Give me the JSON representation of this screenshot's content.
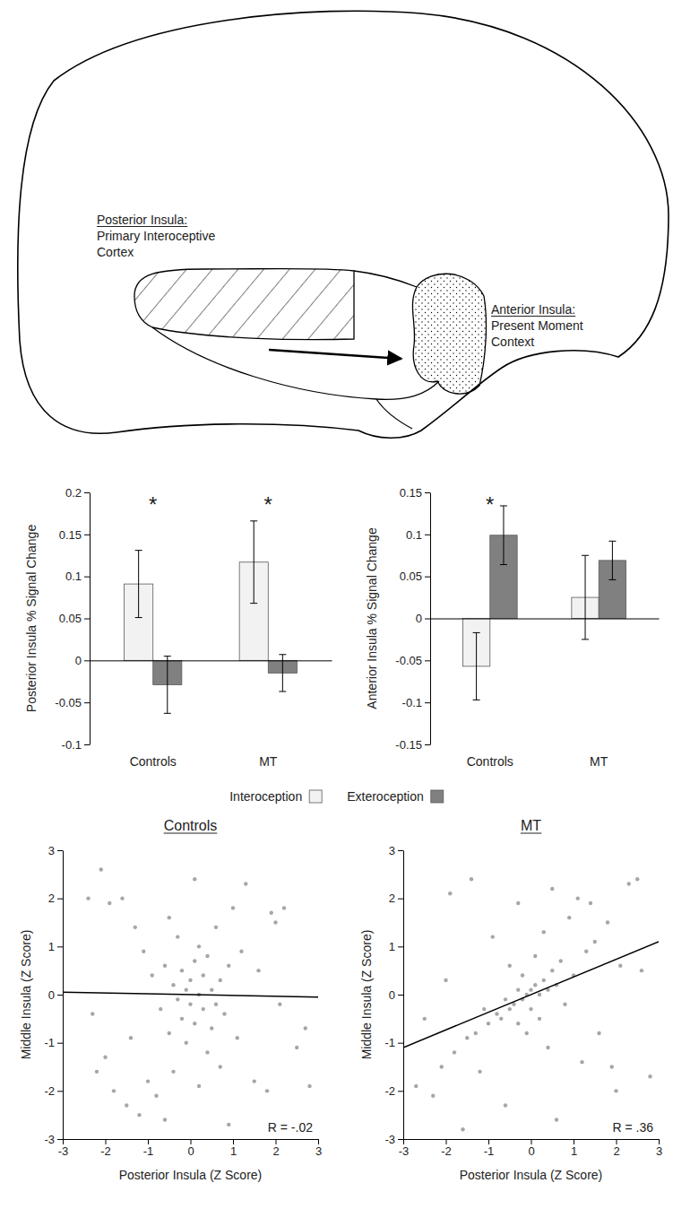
{
  "diagram": {
    "labels": [
      {
        "title": "Posterior Insula:",
        "text": "Primary Interoceptive Cortex"
      },
      {
        "title": "Anterior Insula:",
        "text": "Present Moment Context"
      }
    ]
  },
  "chart_data": [
    {
      "type": "bar",
      "y_label": "Posterior Insula % Signal Change",
      "categories": [
        "Controls",
        "MT"
      ],
      "series": [
        {
          "name": "Interoception",
          "color": "#f2f2f2",
          "values": [
            0.091,
            0.117
          ],
          "errors": [
            0.04,
            0.049
          ]
        },
        {
          "name": "Exteroception",
          "color": "#808080",
          "values": [
            -0.029,
            -0.015
          ],
          "errors": [
            0.034,
            0.022
          ]
        }
      ],
      "ylim": [
        -0.1,
        0.2
      ],
      "yticks": [
        -0.1,
        -0.05,
        0,
        0.05,
        0.1,
        0.15,
        0.2
      ],
      "annotations": [
        {
          "text": "*",
          "x": "Controls"
        },
        {
          "text": "*",
          "x": "MT"
        }
      ],
      "legend": "bottom"
    },
    {
      "type": "bar",
      "y_label": "Anterior Insula % Signal Change",
      "categories": [
        "Controls",
        "MT"
      ],
      "series": [
        {
          "name": "Interoception",
          "color": "#f2f2f2",
          "values": [
            -0.057,
            0.025
          ],
          "errors": [
            0.04,
            0.05
          ]
        },
        {
          "name": "Exteroception",
          "color": "#808080",
          "values": [
            0.099,
            0.069
          ],
          "errors": [
            0.035,
            0.023
          ]
        }
      ],
      "ylim": [
        -0.15,
        0.15
      ],
      "yticks": [
        -0.15,
        -0.1,
        -0.05,
        0,
        0.05,
        0.1,
        0.15
      ],
      "annotations": [
        {
          "text": "*",
          "x": "Controls"
        }
      ]
    },
    {
      "type": "scatter",
      "title": "Controls",
      "x_label": "Posterior Insula (Z Score)",
      "y_label": "Middle Insula (Z Score)",
      "xlim": [
        -3,
        3
      ],
      "xticks": [
        -3,
        -2,
        -1,
        0,
        1,
        2,
        3
      ],
      "ylim": [
        -3,
        3
      ],
      "yticks": [
        -3,
        -2,
        -1,
        0,
        1,
        2,
        3
      ],
      "series": [
        {
          "type": "scatter",
          "marker": "circle",
          "color": "#a6a6a6",
          "x": [
            -2.4,
            -2.1,
            -1.9,
            -1.6,
            -1.3,
            -2.3,
            -2.0,
            -1.8,
            -1.5,
            -1.2,
            -2.2,
            -1.0,
            -0.8,
            -0.6,
            -1.1,
            -0.9,
            -0.7,
            -0.6,
            -0.5,
            -0.4,
            -0.3,
            -0.3,
            -0.2,
            -0.2,
            -0.1,
            -0.1,
            0.0,
            0.0,
            0.1,
            0.1,
            0.2,
            0.2,
            0.3,
            0.3,
            0.4,
            0.4,
            0.5,
            0.5,
            0.6,
            0.6,
            0.7,
            0.7,
            0.8,
            0.9,
            1.0,
            1.1,
            1.3,
            1.5,
            1.6,
            1.8,
            1.9,
            2.0,
            2.1,
            2.2,
            2.5,
            2.7,
            2.8,
            -0.4,
            0.2,
            -0.5,
            0.1,
            -1.4,
            1.2,
            0.9
          ],
          "values": [
            2.0,
            2.6,
            1.9,
            2.0,
            1.4,
            -0.4,
            -1.3,
            -2.0,
            -2.3,
            -2.5,
            -1.6,
            -1.8,
            -2.1,
            -2.6,
            0.9,
            0.4,
            -0.3,
            0.6,
            -0.8,
            0.2,
            -0.1,
            1.2,
            0.5,
            -0.5,
            0.1,
            -1.0,
            0.3,
            -0.2,
            0.7,
            -0.6,
            0.0,
            1.0,
            -0.3,
            0.4,
            -1.2,
            0.8,
            0.1,
            -0.7,
            1.4,
            -0.2,
            0.3,
            -1.5,
            -0.4,
            0.6,
            1.8,
            -0.9,
            2.3,
            -1.8,
            0.5,
            -2.0,
            1.7,
            1.5,
            -0.2,
            1.8,
            -1.1,
            -0.7,
            -1.9,
            -1.6,
            -1.9,
            1.6,
            2.4,
            -0.9,
            0.9,
            -2.7
          ]
        },
        {
          "type": "line",
          "line_style": "solid",
          "color": "#000000",
          "x": [
            -3,
            3
          ],
          "values": [
            0.05,
            -0.05
          ]
        }
      ],
      "annotations": [
        {
          "text": "R = -.02"
        }
      ]
    },
    {
      "type": "scatter",
      "title": "MT",
      "x_label": "Posterior Insula (Z Score)",
      "y_label": "Middle Insula (Z Score)",
      "xlim": [
        -3,
        3
      ],
      "xticks": [
        -3,
        -2,
        -1,
        0,
        1,
        2,
        3
      ],
      "ylim": [
        -3,
        3
      ],
      "yticks": [
        -3,
        -2,
        -1,
        0,
        1,
        2,
        3
      ],
      "series": [
        {
          "type": "scatter",
          "marker": "circle",
          "color": "#a6a6a6",
          "x": [
            -2.7,
            -2.5,
            -2.3,
            -2.1,
            -1.9,
            -1.8,
            -1.6,
            -1.5,
            -1.3,
            -1.2,
            -1.1,
            -1.0,
            -0.9,
            -0.8,
            -0.7,
            -0.6,
            -0.5,
            -0.5,
            -0.4,
            -0.3,
            -0.3,
            -0.2,
            -0.2,
            -0.1,
            -0.1,
            0.0,
            0.0,
            0.1,
            0.1,
            0.2,
            0.2,
            0.3,
            0.3,
            0.4,
            0.4,
            0.5,
            0.5,
            0.6,
            0.7,
            0.8,
            0.9,
            1.0,
            1.1,
            1.2,
            1.3,
            1.5,
            1.6,
            1.8,
            1.9,
            2.0,
            2.1,
            2.3,
            2.5,
            2.6,
            2.8,
            -2.0,
            -1.4,
            -0.6,
            0.6,
            1.4,
            -0.3
          ],
          "values": [
            -1.9,
            -0.5,
            -2.1,
            -1.5,
            2.1,
            -1.2,
            -2.8,
            -0.9,
            -0.8,
            -1.6,
            -0.3,
            -0.6,
            1.2,
            -0.4,
            -0.5,
            -0.1,
            -0.3,
            0.6,
            -0.2,
            -0.6,
            0.1,
            -0.1,
            0.4,
            0.0,
            -0.8,
            0.1,
            -0.3,
            0.2,
            0.8,
            0.0,
            -0.5,
            0.3,
            1.3,
            0.1,
            -1.1,
            0.5,
            2.2,
            0.2,
            0.7,
            -0.2,
            1.6,
            0.4,
            2.0,
            -1.4,
            0.9,
            1.1,
            -0.8,
            1.5,
            -1.5,
            -2.0,
            0.6,
            2.3,
            2.4,
            0.5,
            -1.7,
            0.3,
            2.4,
            -2.3,
            -2.6,
            1.9,
            1.9
          ]
        },
        {
          "type": "line",
          "line_style": "solid",
          "color": "#000000",
          "x": [
            -3,
            3
          ],
          "values": [
            -1.1,
            1.1
          ]
        }
      ],
      "annotations": [
        {
          "text": "R = .36"
        }
      ]
    }
  ]
}
